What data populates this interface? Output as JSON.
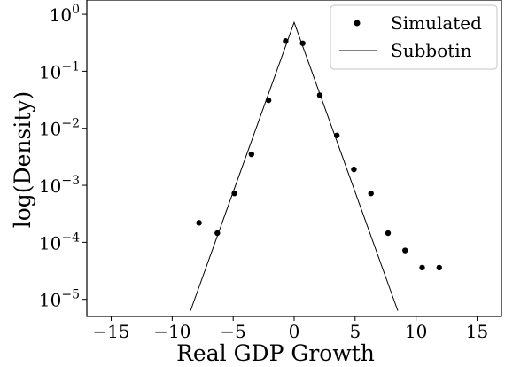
{
  "chart_data": {
    "type": "scatter",
    "xlabel": "Real GDP Growth",
    "ylabel": "log(Density)",
    "xlim": [
      -17,
      17
    ],
    "ylog": true,
    "ylim_log10": [
      -5.3,
      0.25
    ],
    "xticks": [
      -15,
      -10,
      -5,
      0,
      5,
      10,
      15
    ],
    "xtick_labels": [
      "−15",
      "−10",
      "−5",
      "0",
      "5",
      "10",
      "15"
    ],
    "yticks": [
      {
        "base": "10",
        "exp": "0",
        "value": 1
      },
      {
        "base": "10",
        "exp": "−1",
        "value": 0.1
      },
      {
        "base": "10",
        "exp": "−2",
        "value": 0.01
      },
      {
        "base": "10",
        "exp": "−3",
        "value": 0.001
      },
      {
        "base": "10",
        "exp": "−4",
        "value": 0.0001
      },
      {
        "base": "10",
        "exp": "−5",
        "value": 1e-05
      }
    ],
    "grid": false,
    "legend_position": "top-right",
    "series": [
      {
        "name": "Simulated",
        "kind": "scatter",
        "color": "#000000",
        "x": [
          -7.8,
          -6.3,
          -4.9,
          -3.5,
          -2.1,
          -0.7,
          0.7,
          2.1,
          3.5,
          4.9,
          6.3,
          7.7,
          9.1,
          10.5,
          11.9
        ],
        "y": [
          0.00022,
          0.000145,
          0.00072,
          0.0035,
          0.031,
          0.34,
          0.31,
          0.038,
          0.0075,
          0.0019,
          0.00072,
          0.000145,
          7.2e-05,
          3.6e-05,
          3.6e-05
        ]
      },
      {
        "name": "Subbotin",
        "kind": "line",
        "color": "#000000",
        "x": [
          -8.5,
          0,
          8.5
        ],
        "y": [
          6.3e-06,
          0.72,
          6.3e-06
        ]
      }
    ]
  }
}
